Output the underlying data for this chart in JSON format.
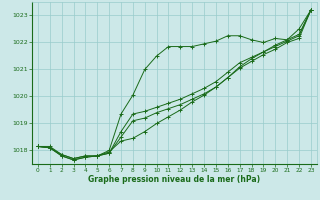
{
  "x": [
    0,
    1,
    2,
    3,
    4,
    5,
    6,
    7,
    8,
    9,
    10,
    11,
    12,
    13,
    14,
    15,
    16,
    17,
    18,
    19,
    20,
    21,
    22,
    23
  ],
  "line1": [
    1018.15,
    1018.15,
    1017.85,
    1017.7,
    1017.8,
    1017.8,
    1017.9,
    1018.7,
    1019.35,
    1019.45,
    1019.6,
    1019.75,
    1019.9,
    1020.1,
    1020.3,
    1020.55,
    1020.9,
    1021.25,
    1021.45,
    1021.65,
    1021.85,
    1022.05,
    1022.25,
    1023.2
  ],
  "line2": [
    1018.15,
    1018.1,
    1017.85,
    1017.7,
    1017.8,
    1017.8,
    1017.9,
    1018.5,
    1019.1,
    1019.2,
    1019.4,
    1019.55,
    1019.7,
    1019.9,
    1020.1,
    1020.35,
    1020.7,
    1021.05,
    1021.3,
    1021.55,
    1021.75,
    1022.0,
    1022.15,
    1023.2
  ],
  "line3": [
    1018.15,
    1018.1,
    1017.8,
    1017.65,
    1017.75,
    1017.8,
    1018.0,
    1019.35,
    1020.05,
    1021.0,
    1021.5,
    1021.85,
    1021.85,
    1021.85,
    1021.95,
    1022.05,
    1022.25,
    1022.25,
    1022.1,
    1022.0,
    1022.15,
    1022.1,
    1022.5,
    1023.2
  ],
  "line4": [
    1018.15,
    1018.1,
    1017.8,
    1017.65,
    1017.75,
    1017.8,
    1017.95,
    1018.35,
    1018.45,
    1018.7,
    1019.0,
    1019.25,
    1019.5,
    1019.8,
    1020.05,
    1020.35,
    1020.7,
    1021.1,
    1021.4,
    1021.65,
    1021.9,
    1022.1,
    1022.3,
    1023.2
  ],
  "ylim_min": 1017.5,
  "ylim_max": 1023.5,
  "yticks": [
    1018,
    1019,
    1020,
    1021,
    1022,
    1023
  ],
  "xticks": [
    0,
    1,
    2,
    3,
    4,
    5,
    6,
    7,
    8,
    9,
    10,
    11,
    12,
    13,
    14,
    15,
    16,
    17,
    18,
    19,
    20,
    21,
    22,
    23
  ],
  "line_color": "#1a6b1a",
  "bg_color": "#cce8e8",
  "grid_color": "#99cccc",
  "xlabel": "Graphe pression niveau de la mer (hPa)"
}
